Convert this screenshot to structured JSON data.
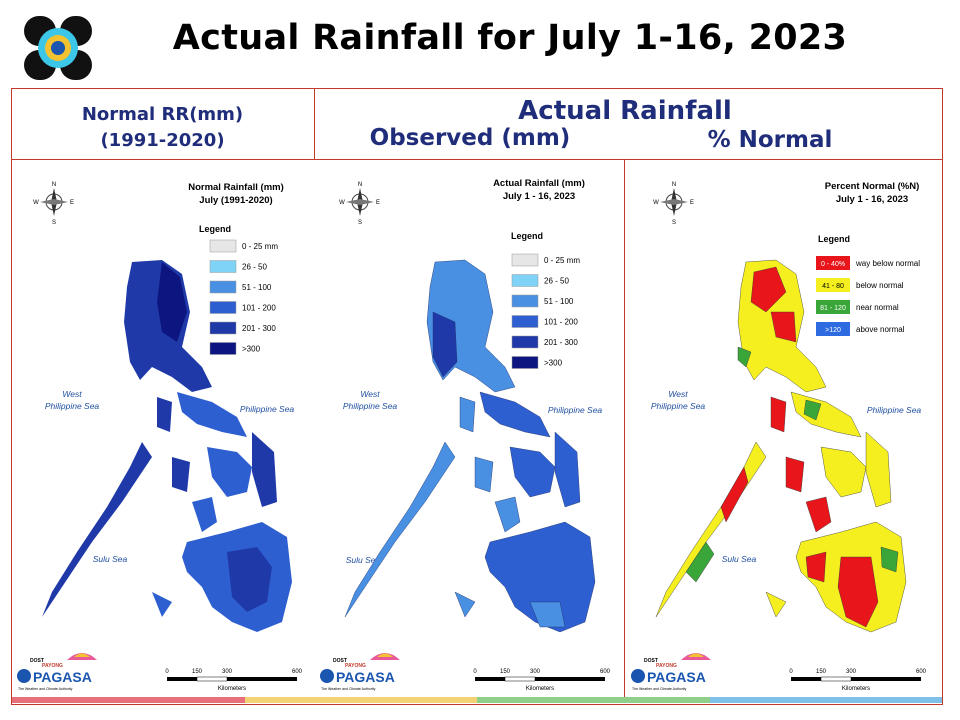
{
  "title": "Actual Rainfall for July 1-16, 2023",
  "headers": {
    "normal_line1": "Normal RR(mm)",
    "normal_line2": "(1991-2020)",
    "actual": "Actual Rainfall",
    "observed": "Observed (mm)",
    "percent": "% Normal"
  },
  "seas": {
    "west": "West",
    "west2": "Philippine Sea",
    "east": "Philippine Sea",
    "sulu": "Sulu Sea"
  },
  "compass": {
    "n": "N",
    "s": "S",
    "e": "E",
    "w": "W"
  },
  "panels": [
    {
      "map_title1": "Normal Rainfall (mm)",
      "map_title2": "July (1991-2020)",
      "legend_title": "Legend",
      "legend": [
        {
          "label": "0 - 25 mm",
          "color": "#e6e6e6"
        },
        {
          "label": "26 - 50",
          "color": "#7fd3f7"
        },
        {
          "label": "51 - 100",
          "color": "#4a90e2"
        },
        {
          "label": "101 - 200",
          "color": "#2e5fd0"
        },
        {
          "label": "201 - 300",
          "color": "#1f3aa8"
        },
        {
          "label": ">300",
          "color": "#0d1580"
        }
      ]
    },
    {
      "map_title1": "Actual Rainfall (mm)",
      "map_title2": "July 1 - 16, 2023",
      "legend_title": "Legend",
      "legend": [
        {
          "label": "0 - 25 mm",
          "color": "#e6e6e6"
        },
        {
          "label": "26 - 50",
          "color": "#7fd3f7"
        },
        {
          "label": "51 - 100",
          "color": "#4a90e2"
        },
        {
          "label": "101 - 200",
          "color": "#2e5fd0"
        },
        {
          "label": "201 - 300",
          "color": "#1f3aa8"
        },
        {
          "label": ">300",
          "color": "#0d1580"
        }
      ]
    },
    {
      "map_title1": "Percent Normal (%N)",
      "map_title2": "July 1 - 16, 2023",
      "legend_title": "Legend",
      "legend": [
        {
          "swatch": "0 - 40%",
          "label": "way below normal",
          "color": "#e8161b"
        },
        {
          "swatch": "41 - 80",
          "label": "below normal",
          "color": "#f5ef1f"
        },
        {
          "swatch": "81 - 120",
          "label": "near normal",
          "color": "#3aa63a"
        },
        {
          "swatch": ">120",
          "label": "above normal",
          "color": "#2f6be0"
        }
      ]
    }
  ],
  "scale": {
    "ticks": [
      "0",
      "150",
      "300",
      "600"
    ],
    "unit": "Kilometers"
  },
  "branding": {
    "dost": "DOST",
    "payong": "PAYONG",
    "pagasa": "PAGASA",
    "tagline": "The Weather and Climate Authority"
  },
  "footer_colors": [
    "#e8707a",
    "#f2d274",
    "#8fcf8a",
    "#7fc0e8"
  ]
}
